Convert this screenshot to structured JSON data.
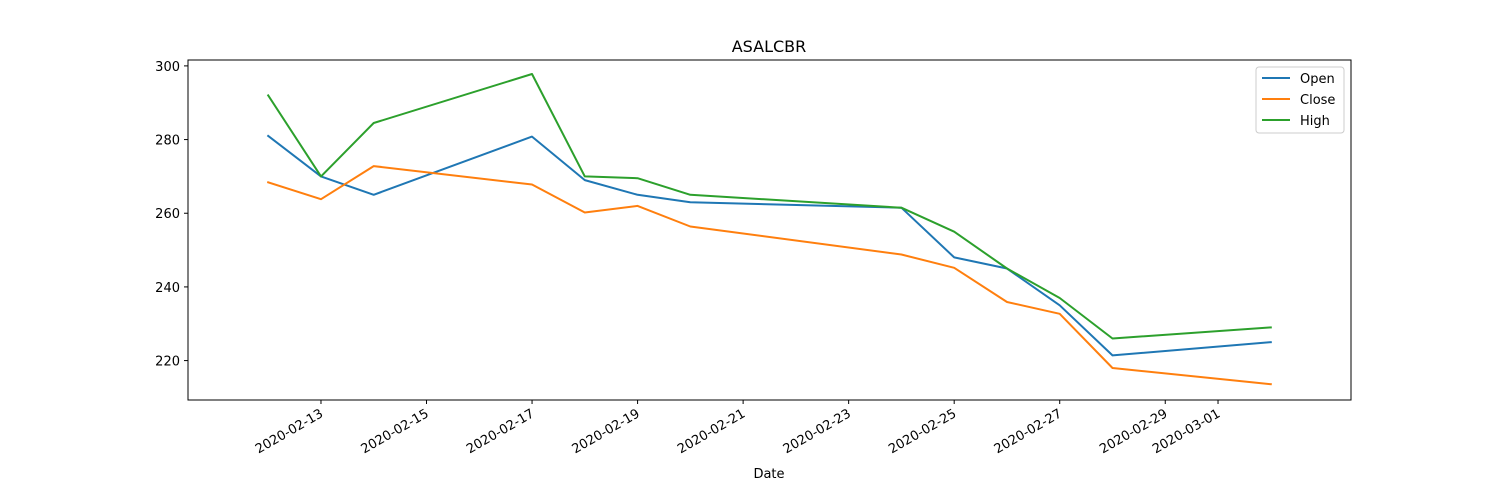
{
  "chart_data": {
    "type": "line",
    "title": "ASALCBR",
    "xlabel": "Date",
    "ylabel": "",
    "x": [
      "2020-02-12",
      "2020-02-13",
      "2020-02-14",
      "2020-02-17",
      "2020-02-18",
      "2020-02-19",
      "2020-02-20",
      "2020-02-24",
      "2020-02-25",
      "2020-02-26",
      "2020-02-27",
      "2020-02-28",
      "2020-03-02"
    ],
    "xlim": [
      "2020-02-10T11:31",
      "2020-03-03T12:29"
    ],
    "ylim": [
      209.3,
      301.6
    ],
    "x_ticks": [
      "2020-02-13",
      "2020-02-15",
      "2020-02-17",
      "2020-02-19",
      "2020-02-21",
      "2020-02-23",
      "2020-02-25",
      "2020-02-27",
      "2020-02-29",
      "2020-03-01"
    ],
    "y_ticks": [
      220,
      240,
      260,
      280,
      300
    ],
    "grid": false,
    "legend_position": "top-right",
    "series": [
      {
        "name": "Open",
        "color": "#1f77b4",
        "values": [
          281.0,
          270.0,
          265.0,
          280.8,
          269.0,
          265.0,
          263.0,
          261.5,
          248.0,
          245.0,
          235.0,
          221.4,
          225.0
        ]
      },
      {
        "name": "Close",
        "color": "#ff7f0e",
        "values": [
          268.4,
          263.8,
          272.8,
          267.8,
          260.2,
          262.0,
          256.4,
          248.8,
          245.2,
          235.9,
          232.7,
          218.0,
          213.6
        ]
      },
      {
        "name": "High",
        "color": "#2ca02c",
        "values": [
          292.0,
          270.0,
          284.5,
          297.8,
          270.0,
          269.5,
          265.0,
          261.5,
          255.0,
          245.0,
          237.0,
          226.0,
          229.0
        ]
      }
    ]
  }
}
